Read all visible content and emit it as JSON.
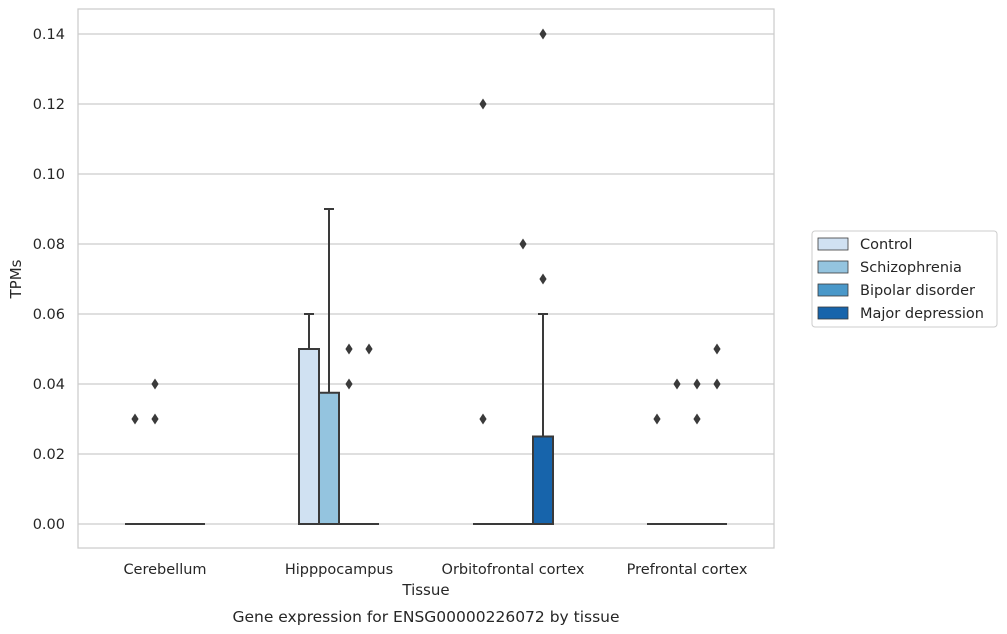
{
  "chart_data": {
    "type": "box",
    "title": "",
    "caption": "Gene expression for ENSG00000226072 by tissue",
    "xlabel": "Tissue",
    "ylabel": "TPMs",
    "ylim": [
      -0.007,
      0.147
    ],
    "yticks": [
      0.0,
      0.02,
      0.04,
      0.06,
      0.08,
      0.1,
      0.12,
      0.14
    ],
    "ytick_labels": [
      "0.00",
      "0.02",
      "0.04",
      "0.06",
      "0.08",
      "0.10",
      "0.12",
      "0.14"
    ],
    "grid": true,
    "legend_position": "right",
    "categories": [
      "Cerebellum",
      "Hipppocampus",
      "Orbitofrontal cortex",
      "Prefrontal cortex"
    ],
    "series": [
      {
        "name": "Control",
        "color": "#d0e1f2",
        "boxes": [
          {
            "q1": 0,
            "median": 0,
            "q3": 0,
            "whislo": 0,
            "whishi": 0,
            "fliers": [
              0.03
            ]
          },
          {
            "q1": 0,
            "median": 0,
            "q3": 0.05,
            "whislo": 0,
            "whishi": 0.06,
            "fliers": []
          },
          {
            "q1": 0,
            "median": 0,
            "q3": 0,
            "whislo": 0,
            "whishi": 0,
            "fliers": [
              0.03,
              0.12
            ]
          },
          {
            "q1": 0,
            "median": 0,
            "q3": 0,
            "whislo": 0,
            "whishi": 0,
            "fliers": [
              0.03
            ]
          }
        ]
      },
      {
        "name": "Schizophrenia",
        "color": "#94c4df",
        "boxes": [
          {
            "q1": 0,
            "median": 0,
            "q3": 0,
            "whislo": 0,
            "whishi": 0,
            "fliers": [
              0.03,
              0.04
            ]
          },
          {
            "q1": 0,
            "median": 0,
            "q3": 0.0375,
            "whislo": 0,
            "whishi": 0.09,
            "fliers": []
          },
          {
            "q1": 0,
            "median": 0,
            "q3": 0,
            "whislo": 0,
            "whishi": 0,
            "fliers": []
          },
          {
            "q1": 0,
            "median": 0,
            "q3": 0,
            "whislo": 0,
            "whishi": 0,
            "fliers": [
              0.04
            ]
          }
        ]
      },
      {
        "name": "Bipolar disorder",
        "color": "#4a98c9",
        "boxes": [
          {
            "q1": 0,
            "median": 0,
            "q3": 0,
            "whislo": 0,
            "whishi": 0,
            "fliers": []
          },
          {
            "q1": 0,
            "median": 0,
            "q3": 0,
            "whislo": 0,
            "whishi": 0,
            "fliers": [
              0.04,
              0.05
            ]
          },
          {
            "q1": 0,
            "median": 0,
            "q3": 0,
            "whislo": 0,
            "whishi": 0,
            "fliers": [
              0.08
            ]
          },
          {
            "q1": 0,
            "median": 0,
            "q3": 0,
            "whislo": 0,
            "whishi": 0,
            "fliers": [
              0.03,
              0.04
            ]
          }
        ]
      },
      {
        "name": "Major depression",
        "color": "#1764ab",
        "boxes": [
          {
            "q1": 0,
            "median": 0,
            "q3": 0,
            "whislo": 0,
            "whishi": 0,
            "fliers": []
          },
          {
            "q1": 0,
            "median": 0,
            "q3": 0,
            "whislo": 0,
            "whishi": 0,
            "fliers": [
              0.05
            ]
          },
          {
            "q1": 0,
            "median": 0,
            "q3": 0.025,
            "whislo": 0,
            "whishi": 0.06,
            "fliers": [
              0.07,
              0.14
            ]
          },
          {
            "q1": 0,
            "median": 0,
            "q3": 0,
            "whislo": 0,
            "whishi": 0,
            "fliers": [
              0.04,
              0.05
            ]
          }
        ]
      }
    ]
  }
}
